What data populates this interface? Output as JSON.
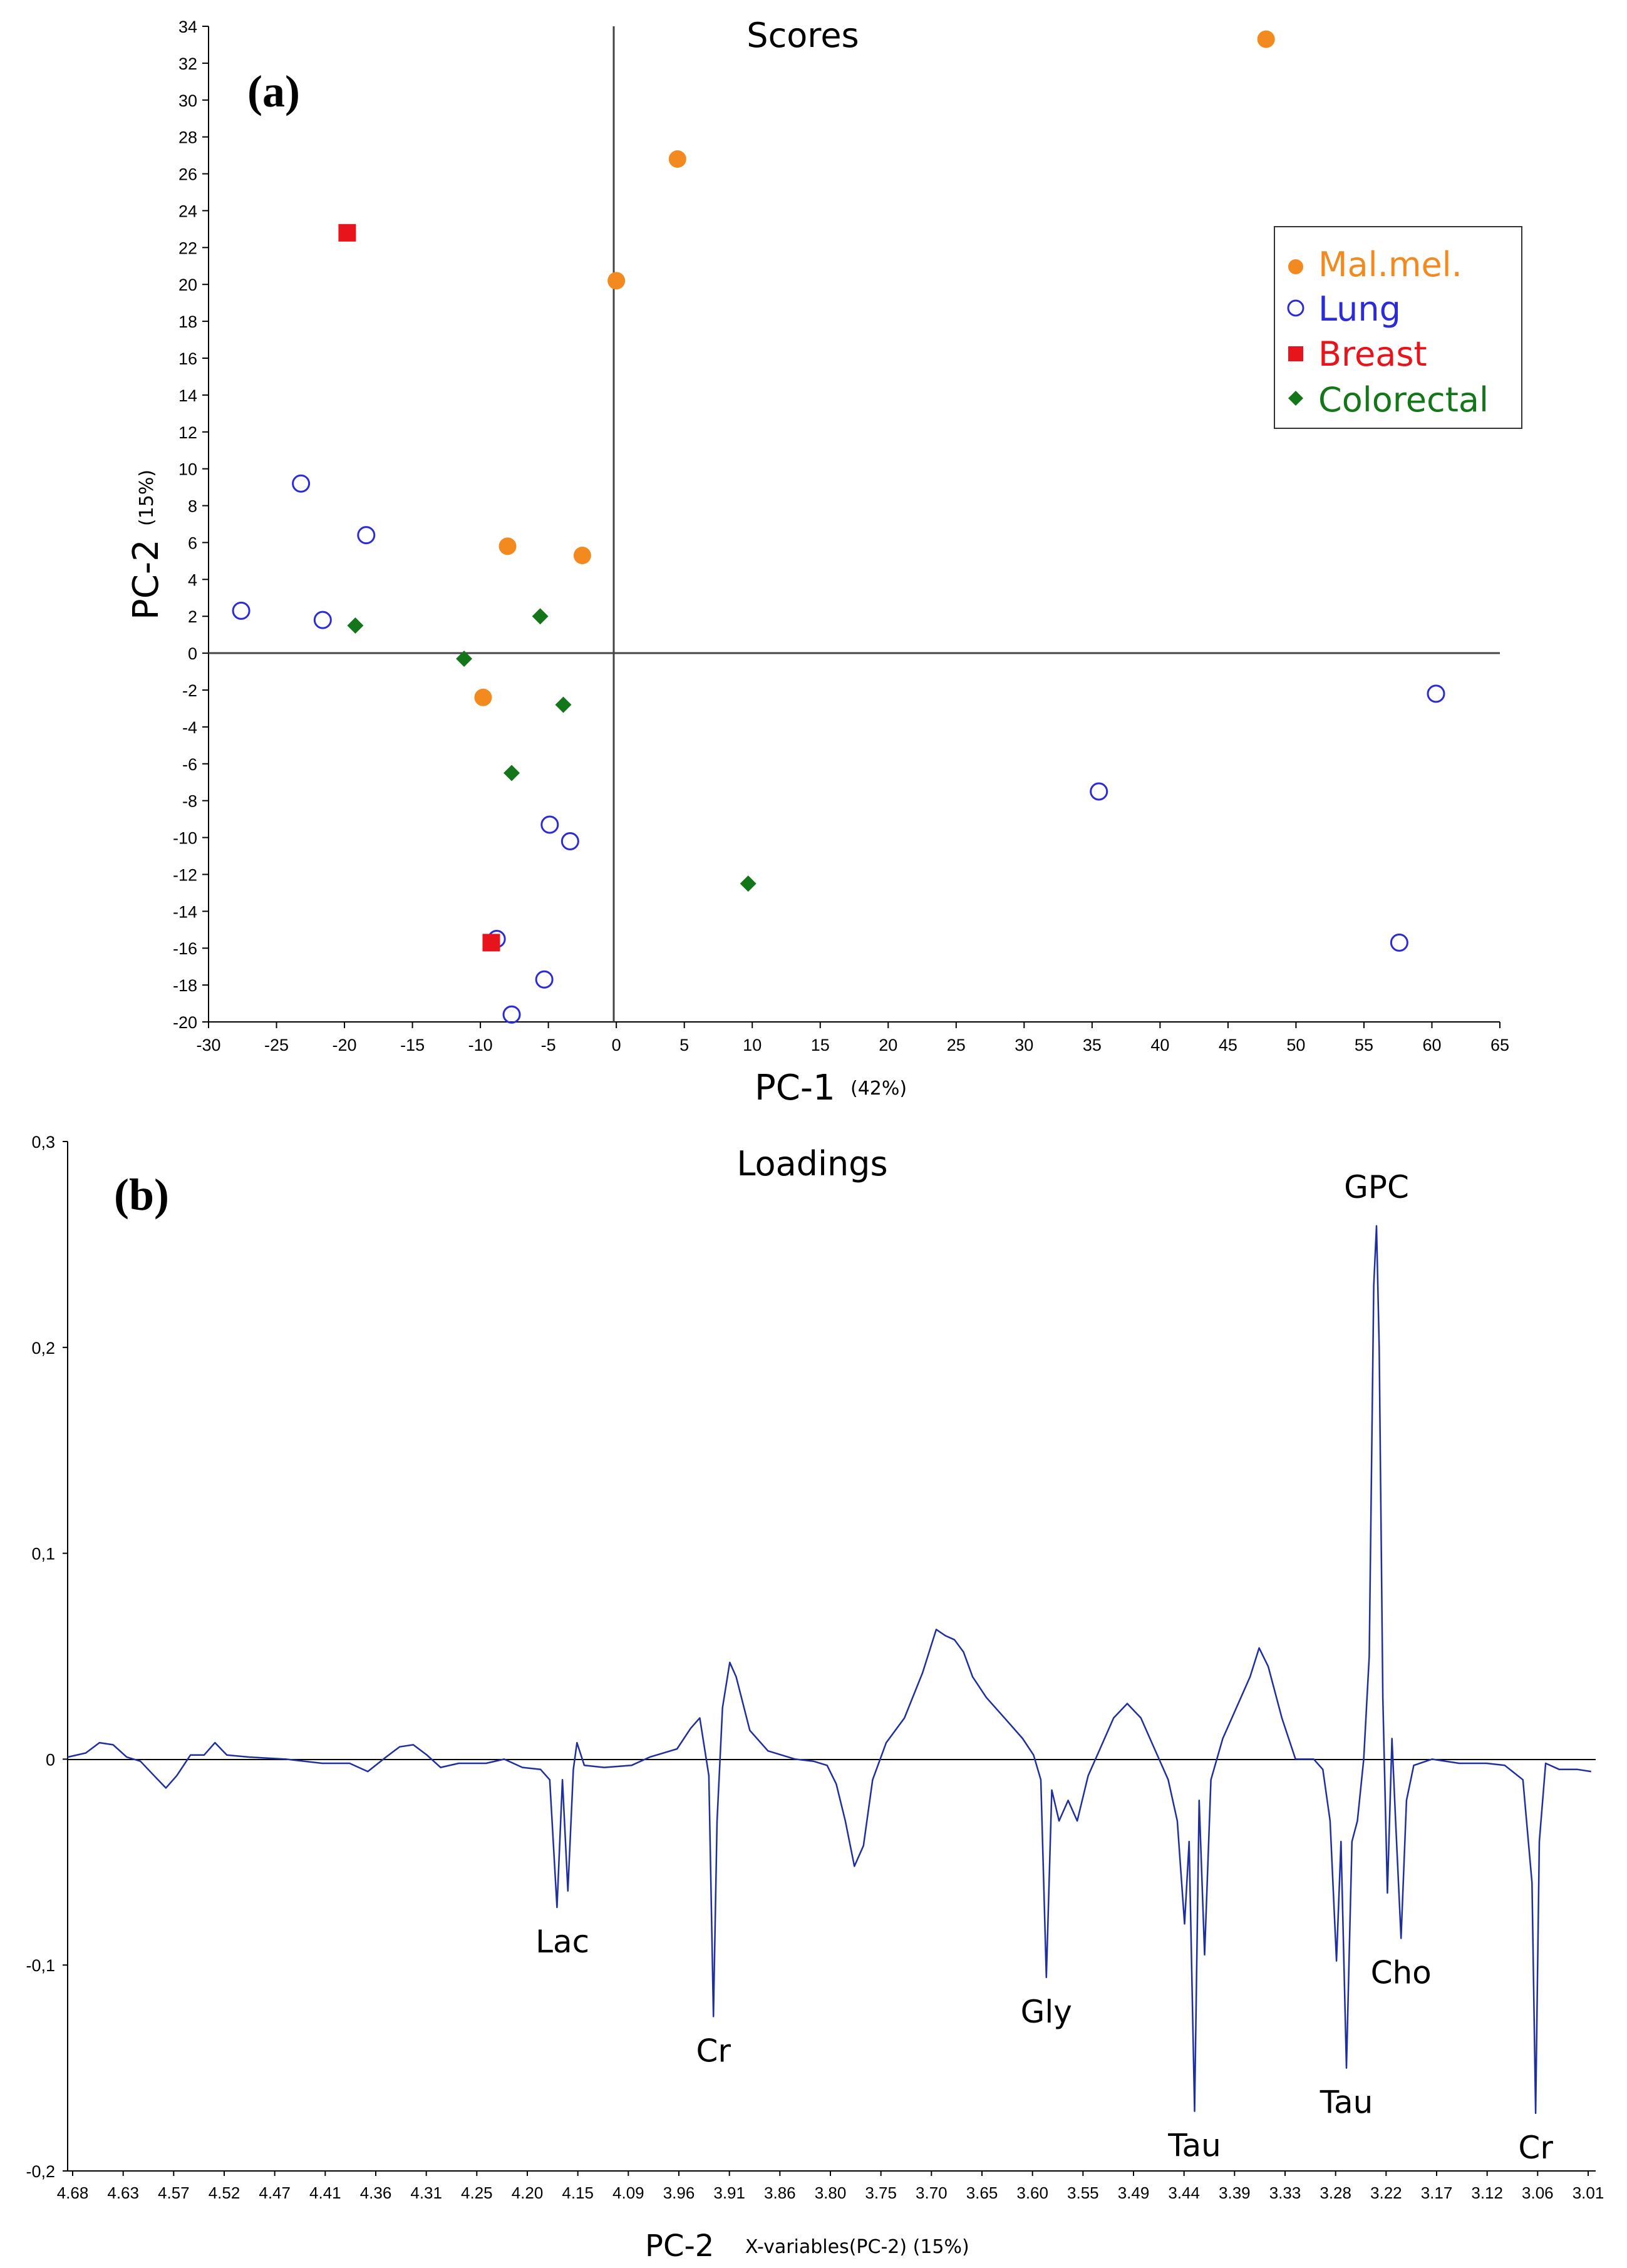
{
  "panel_a": {
    "panel_label": "(a)",
    "chart_data": {
      "type": "scatter",
      "title": "Scores",
      "xlabel": "PC-1",
      "xlabel_pct": "(42%)",
      "ylabel": "PC-2",
      "ylabel_pct": "(15%)",
      "xlim": [
        -30,
        65
      ],
      "ylim": [
        -20,
        34
      ],
      "xticks": [
        -30,
        -25,
        -20,
        -15,
        -10,
        -5,
        0,
        5,
        10,
        15,
        20,
        25,
        30,
        35,
        40,
        45,
        50,
        55,
        60,
        65
      ],
      "yticks": [
        -20,
        -18,
        -16,
        -14,
        -12,
        -10,
        -8,
        -6,
        -4,
        -2,
        0,
        2,
        4,
        6,
        8,
        10,
        12,
        14,
        16,
        18,
        20,
        22,
        24,
        26,
        28,
        30,
        32,
        34
      ],
      "grid": false,
      "legend_position": "top-right",
      "series": [
        {
          "name": "Mal.mel.",
          "marker": "filled-circle",
          "color": "#f28a1f",
          "points": [
            [
              47.8,
              33.3
            ],
            [
              4.5,
              26.8
            ],
            [
              0,
              20.2
            ],
            [
              -8,
              5.8
            ],
            [
              -2.5,
              5.3
            ],
            [
              -9.8,
              -2.4
            ]
          ]
        },
        {
          "name": "Lung",
          "marker": "open-circle",
          "color": "#2b2bd9",
          "points": [
            [
              -23.2,
              9.2
            ],
            [
              -18.4,
              6.4
            ],
            [
              -27.6,
              2.3
            ],
            [
              -21.6,
              1.8
            ],
            [
              -4.9,
              -9.3
            ],
            [
              -3.4,
              -10.2
            ],
            [
              35.5,
              -7.5
            ],
            [
              60.3,
              -2.2
            ],
            [
              57.6,
              -15.7
            ],
            [
              -8.8,
              -15.5
            ],
            [
              -5.3,
              -17.7
            ],
            [
              -7.7,
              -19.6
            ]
          ]
        },
        {
          "name": "Breast",
          "marker": "filled-square",
          "color": "#e8141c",
          "points": [
            [
              -19.8,
              22.8
            ],
            [
              -9.2,
              -15.7
            ]
          ]
        },
        {
          "name": "Colorectal",
          "marker": "filled-diamond",
          "color": "#13771a",
          "points": [
            [
              -19.2,
              1.5
            ],
            [
              -11.2,
              -0.3
            ],
            [
              -5.6,
              2.0
            ],
            [
              -3.9,
              -2.8
            ],
            [
              -7.7,
              -6.5
            ],
            [
              9.7,
              -12.5
            ]
          ]
        }
      ]
    }
  },
  "panel_b": {
    "panel_label": "(b)",
    "chart_data": {
      "type": "line",
      "title": "Loadings",
      "xlabel": "PC-2",
      "xlabel_sub": "X-variables(PC-2) (15%)",
      "ylabel": "",
      "x_reversed": true,
      "xlim": [
        4.68,
        3.0
      ],
      "ylim": [
        -0.2,
        0.3
      ],
      "yticks": [
        "-0,2",
        "-0,1",
        "0",
        "0,1",
        "0,2",
        "0,3"
      ],
      "xticks": [
        "4.68",
        "4.63",
        "4.57",
        "4.52",
        "4.47",
        "4.41",
        "4.36",
        "4.31",
        "4.25",
        "4.20",
        "4.15",
        "4.09",
        "3.96",
        "3.91",
        "3.86",
        "3.80",
        "3.75",
        "3.70",
        "3.65",
        "3.60",
        "3.55",
        "3.49",
        "3.44",
        "3.39",
        "3.33",
        "3.28",
        "3.22",
        "3.17",
        "3.12",
        "3.06",
        "3.01"
      ],
      "line_color": "#1f2f9e",
      "series": [
        {
          "name": "",
          "points": [
            [
              4.68,
              0.001
            ],
            [
              4.66,
              0.003
            ],
            [
              4.645,
              0.008
            ],
            [
              4.63,
              0.007
            ],
            [
              4.615,
              0.001
            ],
            [
              4.6,
              -0.001
            ],
            [
              4.585,
              -0.008
            ],
            [
              4.572,
              -0.014
            ],
            [
              4.56,
              -0.008
            ],
            [
              4.545,
              0.002
            ],
            [
              4.53,
              0.002
            ],
            [
              4.518,
              0.008
            ],
            [
              4.505,
              0.002
            ],
            [
              4.48,
              0.001
            ],
            [
              4.44,
              0.0
            ],
            [
              4.4,
              -0.002
            ],
            [
              4.37,
              -0.002
            ],
            [
              4.35,
              -0.006
            ],
            [
              4.33,
              0.001
            ],
            [
              4.315,
              0.006
            ],
            [
              4.3,
              0.007
            ],
            [
              4.285,
              0.002
            ],
            [
              4.27,
              -0.004
            ],
            [
              4.25,
              -0.002
            ],
            [
              4.22,
              -0.002
            ],
            [
              4.2,
              0.0
            ],
            [
              4.18,
              -0.004
            ],
            [
              4.16,
              -0.005
            ],
            [
              4.15,
              -0.01
            ],
            [
              4.142,
              -0.072
            ],
            [
              4.136,
              -0.01
            ],
            [
              4.13,
              -0.064
            ],
            [
              4.124,
              -0.005
            ],
            [
              4.12,
              0.008
            ],
            [
              4.112,
              -0.003
            ],
            [
              4.09,
              -0.004
            ],
            [
              4.06,
              -0.003
            ],
            [
              4.04,
              0.001
            ],
            [
              4.01,
              0.005
            ],
            [
              3.995,
              0.015
            ],
            [
              3.985,
              0.02
            ],
            [
              3.975,
              -0.008
            ],
            [
              3.97,
              -0.125
            ],
            [
              3.966,
              -0.03
            ],
            [
              3.96,
              0.025
            ],
            [
              3.952,
              0.047
            ],
            [
              3.945,
              0.04
            ],
            [
              3.93,
              0.014
            ],
            [
              3.91,
              0.004
            ],
            [
              3.88,
              0.0
            ],
            [
              3.86,
              -0.001
            ],
            [
              3.845,
              -0.003
            ],
            [
              3.835,
              -0.012
            ],
            [
              3.825,
              -0.03
            ],
            [
              3.815,
              -0.052
            ],
            [
              3.805,
              -0.042
            ],
            [
              3.795,
              -0.01
            ],
            [
              3.78,
              0.008
            ],
            [
              3.76,
              0.02
            ],
            [
              3.74,
              0.042
            ],
            [
              3.725,
              0.063
            ],
            [
              3.715,
              0.06
            ],
            [
              3.705,
              0.058
            ],
            [
              3.695,
              0.052
            ],
            [
              3.685,
              0.04
            ],
            [
              3.67,
              0.03
            ],
            [
              3.65,
              0.02
            ],
            [
              3.63,
              0.01
            ],
            [
              3.618,
              0.002
            ],
            [
              3.61,
              -0.01
            ],
            [
              3.604,
              -0.106
            ],
            [
              3.598,
              -0.015
            ],
            [
              3.59,
              -0.03
            ],
            [
              3.58,
              -0.02
            ],
            [
              3.57,
              -0.03
            ],
            [
              3.558,
              -0.008
            ],
            [
              3.545,
              0.005
            ],
            [
              3.53,
              0.02
            ],
            [
              3.515,
              0.027
            ],
            [
              3.5,
              0.02
            ],
            [
              3.485,
              0.005
            ],
            [
              3.47,
              -0.01
            ],
            [
              3.46,
              -0.03
            ],
            [
              3.452,
              -0.08
            ],
            [
              3.447,
              -0.04
            ],
            [
              3.441,
              -0.171
            ],
            [
              3.436,
              -0.02
            ],
            [
              3.43,
              -0.095
            ],
            [
              3.423,
              -0.01
            ],
            [
              3.41,
              0.01
            ],
            [
              3.395,
              0.025
            ],
            [
              3.38,
              0.04
            ],
            [
              3.37,
              0.054
            ],
            [
              3.36,
              0.045
            ],
            [
              3.345,
              0.02
            ],
            [
              3.33,
              0.0
            ],
            [
              3.31,
              0.0
            ],
            [
              3.3,
              -0.005
            ],
            [
              3.292,
              -0.03
            ],
            [
              3.285,
              -0.098
            ],
            [
              3.28,
              -0.04
            ],
            [
              3.274,
              -0.15
            ],
            [
              3.268,
              -0.04
            ],
            [
              3.262,
              -0.03
            ],
            [
              3.255,
              0.0
            ],
            [
              3.249,
              0.05
            ],
            [
              3.244,
              0.23
            ],
            [
              3.241,
              0.259
            ],
            [
              3.238,
              0.2
            ],
            [
              3.234,
              0.03
            ],
            [
              3.229,
              -0.065
            ],
            [
              3.224,
              0.01
            ],
            [
              3.22,
              -0.03
            ],
            [
              3.214,
              -0.087
            ],
            [
              3.208,
              -0.02
            ],
            [
              3.2,
              -0.003
            ],
            [
              3.18,
              0.0
            ],
            [
              3.15,
              -0.002
            ],
            [
              3.12,
              -0.002
            ],
            [
              3.1,
              -0.003
            ],
            [
              3.08,
              -0.01
            ],
            [
              3.07,
              -0.06
            ],
            [
              3.066,
              -0.172
            ],
            [
              3.062,
              -0.04
            ],
            [
              3.055,
              -0.002
            ],
            [
              3.04,
              -0.005
            ],
            [
              3.02,
              -0.005
            ],
            [
              3.005,
              -0.006
            ]
          ]
        }
      ],
      "annotations": [
        {
          "text": "GPC",
          "x": 3.241,
          "y": 0.259
        },
        {
          "text": "Lac",
          "x": 4.136,
          "y": -0.072
        },
        {
          "text": "Cr",
          "x": 3.97,
          "y": -0.125
        },
        {
          "text": "Gly",
          "x": 3.604,
          "y": -0.106
        },
        {
          "text": "Tau",
          "x": 3.441,
          "y": -0.171
        },
        {
          "text": "Tau",
          "x": 3.274,
          "y": -0.15
        },
        {
          "text": "Cho",
          "x": 3.214,
          "y": -0.087
        },
        {
          "text": "Cr",
          "x": 3.066,
          "y": -0.172
        }
      ]
    }
  }
}
